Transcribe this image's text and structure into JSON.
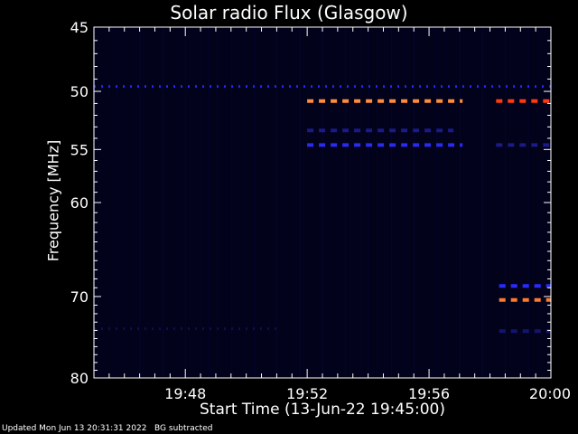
{
  "chart_data": {
    "type": "heatmap",
    "title": "Solar radio Flux (Glasgow)",
    "xlabel": "Start Time (13-Jun-22 19:45:00)",
    "ylabel": "Frequency [MHz]",
    "x_tick_labels": [
      "19:48",
      "19:52",
      "19:56",
      "20:00"
    ],
    "x_ticks_minutes_after_start": [
      3,
      7,
      11,
      15
    ],
    "xlim_minutes_after_start": [
      0,
      15
    ],
    "y_tick_labels": [
      "45",
      "50",
      "55",
      "60",
      "70",
      "80"
    ],
    "y_ticks": [
      45,
      50,
      55,
      60,
      70,
      80
    ],
    "ylim": [
      45,
      80
    ],
    "y_scale": "log",
    "y_reversed": true,
    "background_color": "#02021a",
    "features": [
      {
        "frequency_mhz": 49.6,
        "start_min": 0.0,
        "end_min": 15.0,
        "color": "#2222ff",
        "style": "dotted"
      },
      {
        "frequency_mhz": 50.8,
        "start_min": 7.0,
        "end_min": 12.1,
        "color": "#ff8c3a",
        "style": "dashed"
      },
      {
        "frequency_mhz": 50.8,
        "start_min": 13.2,
        "end_min": 15.0,
        "color": "#ff3a10",
        "style": "dashed"
      },
      {
        "frequency_mhz": 53.3,
        "start_min": 7.0,
        "end_min": 11.8,
        "color": "#1a1a88",
        "style": "dashed"
      },
      {
        "frequency_mhz": 54.6,
        "start_min": 7.0,
        "end_min": 12.1,
        "color": "#2a2af0",
        "style": "dashed"
      },
      {
        "frequency_mhz": 54.6,
        "start_min": 13.2,
        "end_min": 15.0,
        "color": "#1a1a88",
        "style": "dashed"
      },
      {
        "frequency_mhz": 68.8,
        "start_min": 13.3,
        "end_min": 15.0,
        "color": "#2a2aff",
        "style": "dashed"
      },
      {
        "frequency_mhz": 70.4,
        "start_min": 13.3,
        "end_min": 15.0,
        "color": "#ff7a2a",
        "style": "dashed"
      },
      {
        "frequency_mhz": 74.1,
        "start_min": 13.3,
        "end_min": 15.0,
        "color": "#141470",
        "style": "dashed"
      },
      {
        "frequency_mhz": 73.8,
        "start_min": 0.0,
        "end_min": 6.0,
        "color": "#0e0e50",
        "style": "dotted"
      }
    ]
  },
  "footer": {
    "updated": "Updated Mon Jun 13 20:31:31 2022",
    "note": "BG subtracted"
  }
}
